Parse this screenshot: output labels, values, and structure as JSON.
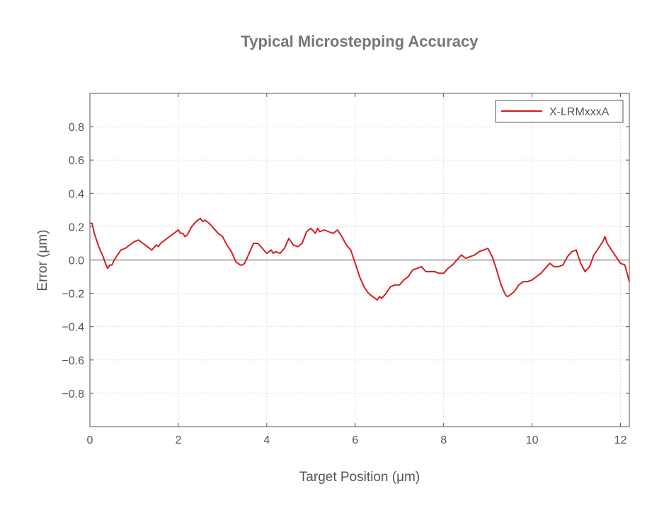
{
  "chart_data": {
    "type": "line",
    "title": "Typical Microstepping Accuracy",
    "xlabel": "Target Position (μm)",
    "ylabel": "Error (μm)",
    "xlim": [
      0,
      12.2
    ],
    "ylim": [
      -1.0,
      1.0
    ],
    "xticks": [
      0,
      2,
      4,
      6,
      8,
      10,
      12
    ],
    "xtick_labels": [
      "0",
      "2",
      "4",
      "6",
      "8",
      "10",
      "12"
    ],
    "yticks": [
      0.8,
      0.6,
      0.4,
      0.2,
      0.0,
      -0.2,
      -0.4,
      -0.6,
      -0.8
    ],
    "ytick_labels": [
      "0.8",
      "0.6",
      "0.4",
      "0.2",
      "0.0",
      "−0.2",
      "−0.4",
      "−0.6",
      "−0.8"
    ],
    "grid": true,
    "zero_line": true,
    "legend_position": "top-right",
    "series": [
      {
        "name": "X-LRMxxxA",
        "color": "#d42020",
        "x": [
          0.0,
          0.05,
          0.1,
          0.2,
          0.3,
          0.35,
          0.4,
          0.45,
          0.5,
          0.55,
          0.6,
          0.7,
          0.8,
          0.9,
          1.0,
          1.1,
          1.15,
          1.2,
          1.3,
          1.4,
          1.5,
          1.55,
          1.6,
          1.7,
          1.8,
          1.9,
          2.0,
          2.05,
          2.1,
          2.15,
          2.2,
          2.3,
          2.4,
          2.5,
          2.55,
          2.6,
          2.7,
          2.8,
          2.9,
          3.0,
          3.1,
          3.2,
          3.3,
          3.4,
          3.45,
          3.5,
          3.6,
          3.7,
          3.8,
          3.9,
          4.0,
          4.1,
          4.15,
          4.2,
          4.3,
          4.4,
          4.5,
          4.6,
          4.7,
          4.8,
          4.9,
          5.0,
          5.1,
          5.15,
          5.2,
          5.3,
          5.4,
          5.5,
          5.6,
          5.65,
          5.7,
          5.8,
          5.9,
          6.0,
          6.1,
          6.2,
          6.3,
          6.4,
          6.5,
          6.55,
          6.6,
          6.7,
          6.8,
          6.9,
          7.0,
          7.1,
          7.2,
          7.3,
          7.4,
          7.5,
          7.6,
          7.7,
          7.8,
          7.9,
          8.0,
          8.1,
          8.2,
          8.3,
          8.4,
          8.5,
          8.6,
          8.7,
          8.8,
          8.9,
          9.0,
          9.1,
          9.2,
          9.3,
          9.4,
          9.45,
          9.5,
          9.6,
          9.7,
          9.8,
          9.9,
          10.0,
          10.1,
          10.2,
          10.3,
          10.4,
          10.5,
          10.6,
          10.7,
          10.8,
          10.9,
          11.0,
          11.1,
          11.2,
          11.3,
          11.4,
          11.5,
          11.6,
          11.65,
          11.7,
          11.8,
          11.9,
          12.0,
          12.1,
          12.2
        ],
        "y": [
          0.22,
          0.22,
          0.16,
          0.08,
          0.02,
          -0.02,
          -0.05,
          -0.03,
          -0.03,
          0.0,
          0.02,
          0.06,
          0.07,
          0.09,
          0.11,
          0.12,
          0.11,
          0.1,
          0.08,
          0.06,
          0.09,
          0.08,
          0.1,
          0.12,
          0.14,
          0.16,
          0.18,
          0.16,
          0.16,
          0.14,
          0.15,
          0.2,
          0.23,
          0.25,
          0.23,
          0.24,
          0.22,
          0.19,
          0.16,
          0.14,
          0.09,
          0.05,
          -0.01,
          -0.03,
          -0.03,
          -0.02,
          0.04,
          0.1,
          0.1,
          0.07,
          0.04,
          0.06,
          0.04,
          0.05,
          0.04,
          0.07,
          0.13,
          0.09,
          0.08,
          0.1,
          0.17,
          0.19,
          0.16,
          0.19,
          0.17,
          0.18,
          0.17,
          0.16,
          0.18,
          0.16,
          0.14,
          0.09,
          0.06,
          -0.02,
          -0.1,
          -0.16,
          -0.2,
          -0.22,
          -0.24,
          -0.22,
          -0.23,
          -0.2,
          -0.16,
          -0.15,
          -0.15,
          -0.12,
          -0.1,
          -0.06,
          -0.05,
          -0.04,
          -0.07,
          -0.07,
          -0.07,
          -0.08,
          -0.08,
          -0.05,
          -0.03,
          0.0,
          0.03,
          0.01,
          0.02,
          0.03,
          0.05,
          0.06,
          0.07,
          0.02,
          -0.06,
          -0.15,
          -0.21,
          -0.22,
          -0.21,
          -0.19,
          -0.15,
          -0.13,
          -0.13,
          -0.12,
          -0.1,
          -0.08,
          -0.05,
          -0.02,
          -0.04,
          -0.04,
          -0.03,
          0.02,
          0.05,
          0.06,
          -0.02,
          -0.07,
          -0.04,
          0.03,
          0.07,
          0.11,
          0.14,
          0.1,
          0.06,
          0.02,
          -0.02,
          -0.03,
          -0.13
        ]
      }
    ]
  }
}
